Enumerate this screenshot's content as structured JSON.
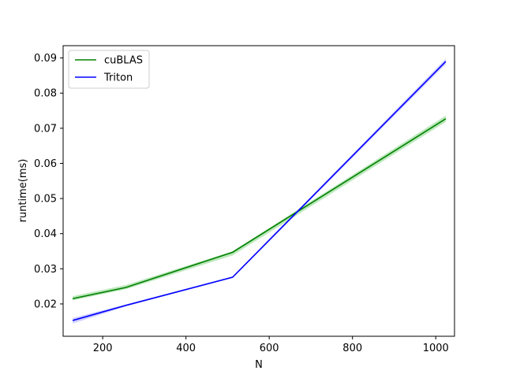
{
  "chart_data": {
    "type": "line",
    "title": "",
    "xlabel": "N",
    "ylabel": "runtime(ms)",
    "xlim": [
      105,
      1045
    ],
    "ylim": [
      0.0108,
      0.0935
    ],
    "xticks": [
      200,
      400,
      600,
      800,
      1000
    ],
    "yticks": [
      0.02,
      0.03,
      0.04,
      0.05,
      0.06,
      0.07,
      0.08,
      0.09
    ],
    "xtick_labels": [
      "200",
      "400",
      "600",
      "800",
      "1000"
    ],
    "ytick_labels": [
      "0.02",
      "0.03",
      "0.04",
      "0.05",
      "0.06",
      "0.07",
      "0.08",
      "0.09"
    ],
    "grid": false,
    "legend_position": "top-left",
    "series": [
      {
        "name": "cuBLAS",
        "color": "#008000",
        "band_color": "#90d890",
        "x": [
          128,
          256,
          512,
          1024
        ],
        "y": [
          0.0215,
          0.0247,
          0.0347,
          0.0727
        ],
        "y_low": [
          0.021,
          0.0242,
          0.0338,
          0.0718
        ],
        "y_high": [
          0.0222,
          0.0254,
          0.035,
          0.0736
        ]
      },
      {
        "name": "Triton",
        "color": "#0000ff",
        "band_color": "#b0b0ff",
        "x": [
          128,
          256,
          512,
          1024
        ],
        "y": [
          0.0153,
          0.0196,
          0.0276,
          0.089
        ],
        "y_low": [
          0.0144,
          0.0193,
          0.0274,
          0.0882
        ],
        "y_high": [
          0.016,
          0.0199,
          0.0278,
          0.0898
        ]
      }
    ]
  }
}
